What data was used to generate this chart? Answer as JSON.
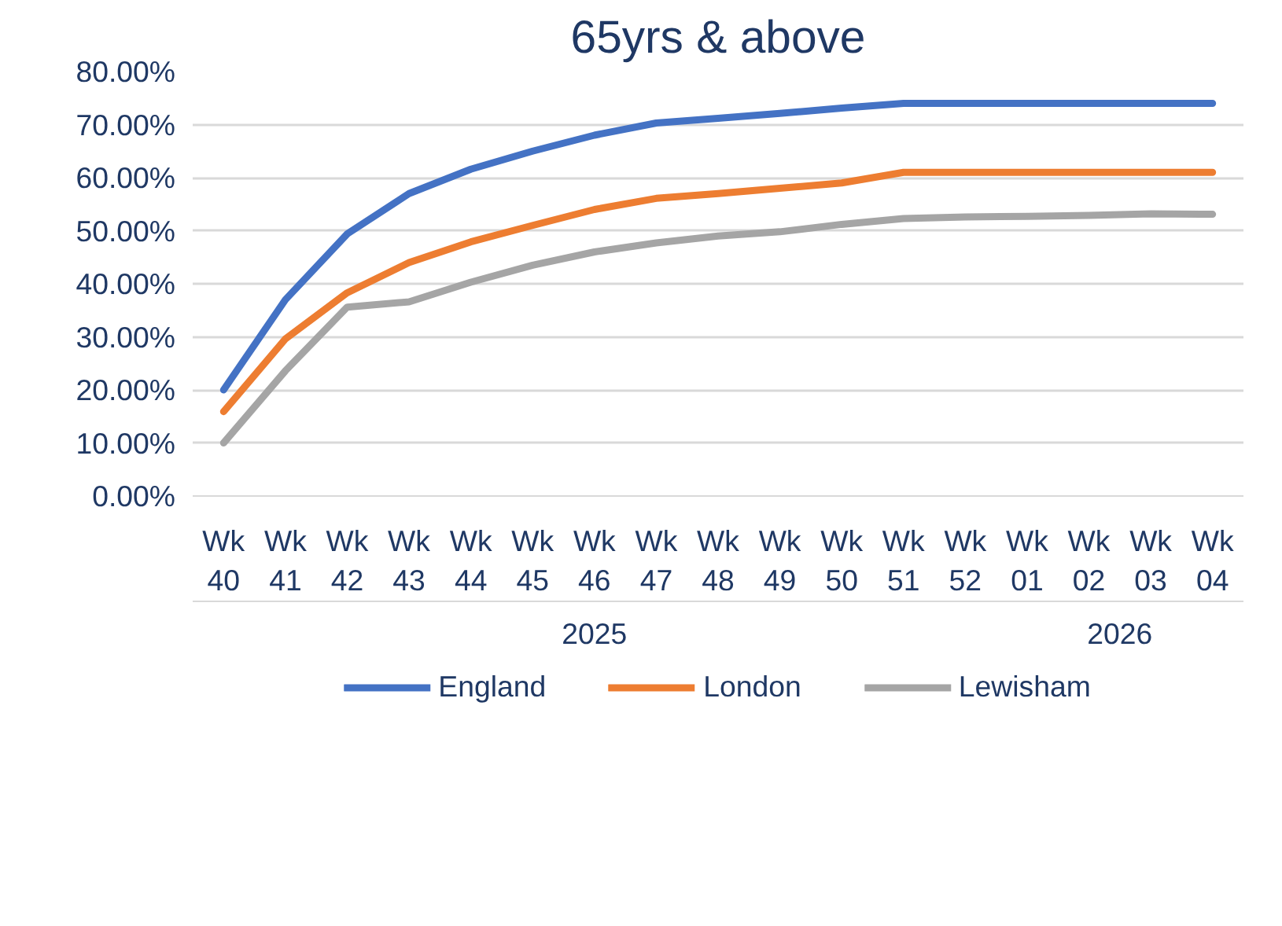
{
  "chart_data": {
    "type": "line",
    "title": "65yrs & above",
    "categories": [
      "Wk 40",
      "Wk 41",
      "Wk 42",
      "Wk 43",
      "Wk 44",
      "Wk 45",
      "Wk 46",
      "Wk 47",
      "Wk 48",
      "Wk 49",
      "Wk 50",
      "Wk 51",
      "Wk 52",
      "Wk 01",
      "Wk 02",
      "Wk 03",
      "Wk 04"
    ],
    "series": [
      {
        "name": "England",
        "color": "#4472c4",
        "values": [
          20.0,
          37.0,
          49.4,
          57.0,
          61.6,
          65.0,
          68.0,
          70.3,
          71.2,
          72.1,
          73.1,
          74.0,
          74.0,
          74.0,
          74.0,
          74.0,
          74.0
        ]
      },
      {
        "name": "London",
        "color": "#ed7d31",
        "values": [
          15.9,
          29.6,
          38.3,
          44.0,
          47.9,
          51.0,
          54.0,
          56.1,
          57.0,
          58.0,
          59.0,
          61.0,
          61.0,
          61.0,
          61.0,
          61.0,
          61.0
        ]
      },
      {
        "name": "Lewisham",
        "color": "#a5a5a5",
        "values": [
          10.0,
          23.6,
          35.6,
          36.6,
          40.3,
          43.5,
          46.0,
          47.7,
          49.0,
          49.8,
          51.2,
          52.3,
          52.6,
          52.7,
          52.9,
          53.2,
          53.1
        ]
      }
    ],
    "annotations": [
      "2025",
      "2026"
    ],
    "ylim": [
      0,
      80
    ],
    "yticks": [
      {
        "value": 0,
        "label": "0.00%"
      },
      {
        "value": 10,
        "label": "10.00%"
      },
      {
        "value": 20,
        "label": "20.00%"
      },
      {
        "value": 30,
        "label": "30.00%"
      },
      {
        "value": 40,
        "label": "40.00%"
      },
      {
        "value": 50,
        "label": "50.00%"
      },
      {
        "value": 60,
        "label": "60.00%"
      },
      {
        "value": 70,
        "label": "70.00%"
      },
      {
        "value": 80,
        "label": "80.00%"
      }
    ],
    "grid": "y",
    "legend": "bottom",
    "marker": "none",
    "line_style": "solid"
  }
}
